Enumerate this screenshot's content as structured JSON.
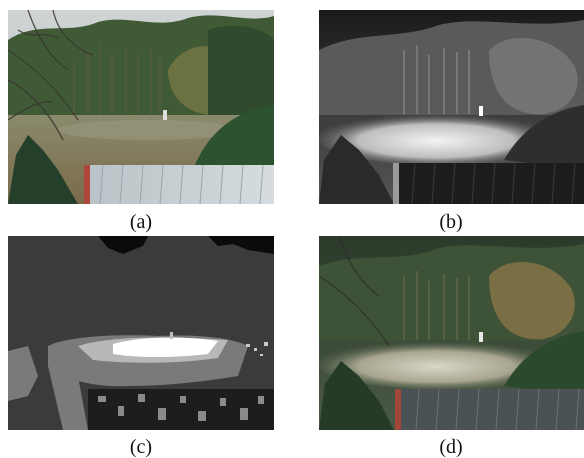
{
  "panels": [
    {
      "key": "a",
      "caption": "(a)",
      "image": "color-visible-photo"
    },
    {
      "key": "b",
      "caption": "(b)",
      "image": "grayscale-thermal-infrared-photo"
    },
    {
      "key": "c",
      "caption": "(c)",
      "image": "segmented-gray-level-map"
    },
    {
      "key": "d",
      "caption": "(d)",
      "image": "fused-color-photo"
    }
  ]
}
